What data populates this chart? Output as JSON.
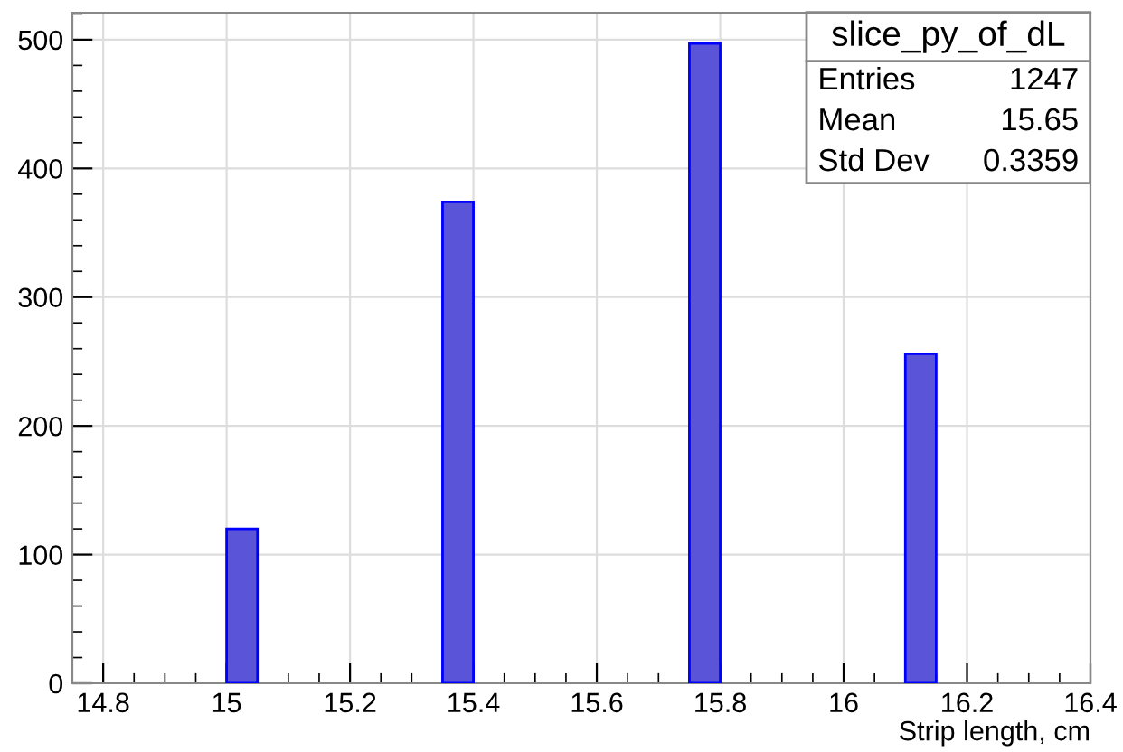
{
  "chart_data": {
    "type": "histogram",
    "title": "slice_py_of_dL",
    "xlabel": "Strip length, cm",
    "bins": [
      14.75,
      14.8,
      14.85,
      14.9,
      14.95,
      15.0,
      15.05,
      15.1,
      15.15,
      15.2,
      15.25,
      15.3,
      15.35,
      15.4,
      15.45,
      15.5,
      15.55,
      15.6,
      15.65,
      15.7,
      15.75,
      15.8,
      15.85,
      15.9,
      15.95,
      16.0,
      16.05,
      16.1,
      16.15,
      16.2,
      16.25,
      16.3,
      16.35,
      16.4
    ],
    "values": [
      0,
      0,
      0,
      0,
      0,
      120,
      0,
      0,
      0,
      0,
      0,
      0,
      374,
      0,
      0,
      0,
      0,
      0,
      0,
      0,
      497,
      0,
      0,
      0,
      0,
      0,
      0,
      256,
      0,
      0,
      0,
      0,
      0
    ],
    "color": "#5a54d9",
    "xlim": [
      14.75,
      16.4
    ],
    "xticks": [
      14.8,
      15,
      15.2,
      15.4,
      15.6,
      15.8,
      16,
      16.2,
      16.4
    ],
    "ylim": [
      0,
      521
    ],
    "yticks": [
      0,
      100,
      200,
      300,
      400,
      500
    ],
    "grid": true,
    "annotations": [
      "Entries",
      "1247",
      "Mean",
      "15.65",
      "Std Dev",
      "0.3359"
    ]
  }
}
